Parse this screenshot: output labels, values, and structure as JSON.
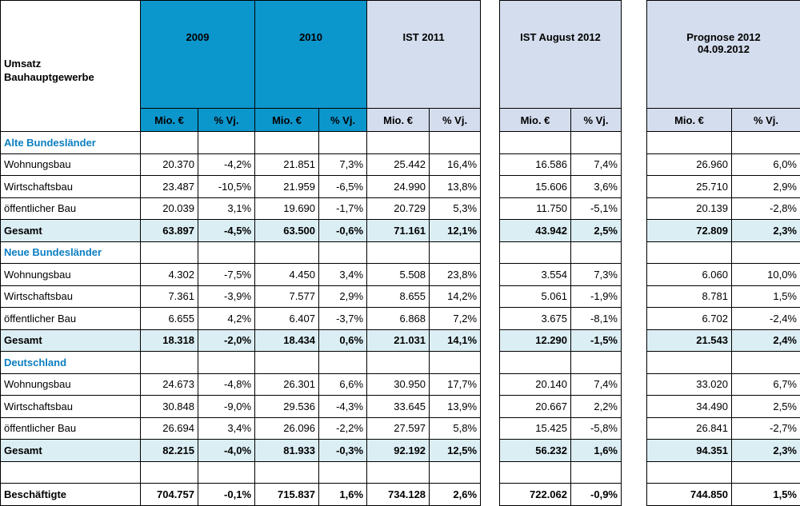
{
  "header": {
    "title_line1": "Umsatz",
    "title_line2": "Bauhauptgewerbe",
    "col_2009": "2009",
    "col_2010": "2010",
    "col_ist2011": "IST 2011",
    "col_istaug": "IST August 2012",
    "col_prog_line1": "Prognose 2012",
    "col_prog_line2": "04.09.2012",
    "unit_mio": "Mio. €",
    "unit_vj": "% Vj."
  },
  "sections": [
    {
      "title": "Alte Bundesländer",
      "rows": [
        {
          "label": "Wohnungsbau",
          "v": [
            "20.370",
            "-4,2%",
            "21.851",
            "7,3%",
            "25.442",
            "16,4%",
            "16.586",
            "7,4%",
            "26.960",
            "6,0%"
          ]
        },
        {
          "label": "Wirtschaftsbau",
          "v": [
            "23.487",
            "-10,5%",
            "21.959",
            "-6,5%",
            "24.990",
            "13,8%",
            "15.606",
            "3,6%",
            "25.710",
            "2,9%"
          ]
        },
        {
          "label": "öffentlicher Bau",
          "v": [
            "20.039",
            "3,1%",
            "19.690",
            "-1,7%",
            "20.729",
            "5,3%",
            "11.750",
            "-5,1%",
            "20.139",
            "-2,8%"
          ]
        }
      ],
      "total": {
        "label": "Gesamt",
        "v": [
          "63.897",
          "-4,5%",
          "63.500",
          "-0,6%",
          "71.161",
          "12,1%",
          "43.942",
          "2,5%",
          "72.809",
          "2,3%"
        ]
      }
    },
    {
      "title": "Neue Bundesländer",
      "rows": [
        {
          "label": "Wohnungsbau",
          "v": [
            "4.302",
            "-7,5%",
            "4.450",
            "3,4%",
            "5.508",
            "23,8%",
            "3.554",
            "7,3%",
            "6.060",
            "10,0%"
          ]
        },
        {
          "label": "Wirtschaftsbau",
          "v": [
            "7.361",
            "-3,9%",
            "7.577",
            "2,9%",
            "8.655",
            "14,2%",
            "5.061",
            "-1,9%",
            "8.781",
            "1,5%"
          ]
        },
        {
          "label": "öffentlicher Bau",
          "v": [
            "6.655",
            "4,2%",
            "6.407",
            "-3,7%",
            "6.868",
            "7,2%",
            "3.675",
            "-8,1%",
            "6.702",
            "-2,4%"
          ]
        }
      ],
      "total": {
        "label": "Gesamt",
        "v": [
          "18.318",
          "-2,0%",
          "18.434",
          "0,6%",
          "21.031",
          "14,1%",
          "12.290",
          "-1,5%",
          "21.543",
          "2,4%"
        ]
      }
    },
    {
      "title": "Deutschland",
      "rows": [
        {
          "label": "Wohnungsbau",
          "v": [
            "24.673",
            "-4,8%",
            "26.301",
            "6,6%",
            "30.950",
            "17,7%",
            "20.140",
            "7,4%",
            "33.020",
            "6,7%"
          ]
        },
        {
          "label": "Wirtschaftsbau",
          "v": [
            "30.848",
            "-9,0%",
            "29.536",
            "-4,3%",
            "33.645",
            "13,9%",
            "20.667",
            "2,2%",
            "34.490",
            "2,5%"
          ]
        },
        {
          "label": "öffentlicher Bau",
          "v": [
            "26.694",
            "3,4%",
            "26.096",
            "-2,2%",
            "27.597",
            "5,8%",
            "15.425",
            "-5,8%",
            "26.841",
            "-2,7%"
          ]
        }
      ],
      "total": {
        "label": "Gesamt",
        "v": [
          "82.215",
          "-4,0%",
          "81.933",
          "-0,3%",
          "92.192",
          "12,5%",
          "56.232",
          "1,6%",
          "94.351",
          "2,3%"
        ]
      }
    }
  ],
  "employees": {
    "label": "Beschäftigte",
    "v": [
      "704.757",
      "-0,1%",
      "715.837",
      "1,6%",
      "734.128",
      "2,6%",
      "722.062",
      "-0,9%",
      "744.850",
      "1,5%"
    ]
  }
}
